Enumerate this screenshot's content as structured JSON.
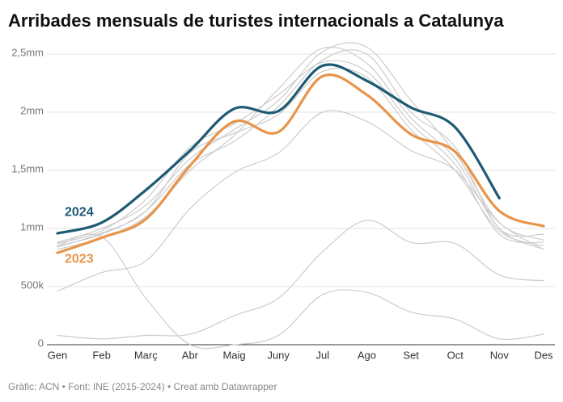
{
  "chart_data": {
    "type": "line",
    "title": "Arribades mensuals de turistes internacionals a Catalunya",
    "source": "Gràfic: ACN • Font: INE (2015-2024) • Creat amb Datawrapper",
    "categories": [
      "Gen",
      "Feb",
      "Març",
      "Abr",
      "Maig",
      "Juny",
      "Jul",
      "Ago",
      "Set",
      "Oct",
      "Nov",
      "Des"
    ],
    "ylim": [
      0,
      2550000
    ],
    "yticks": [
      0,
      {
        "value": 500000,
        "label": "500k"
      },
      {
        "value": 1000000,
        "label": "1mm"
      },
      {
        "value": 1500000,
        "label": "1,5mm"
      },
      {
        "value": 2000000,
        "label": "2mm"
      },
      {
        "value": 2500000,
        "label": "2,5mm"
      }
    ],
    "grid": true,
    "series": [
      {
        "color": "#cccccc",
        "values": [
          850000,
          950000,
          1150000,
          1550000,
          1750000,
          2050000,
          2450000,
          2500000,
          2000000,
          1700000,
          1000000,
          950000
        ]
      },
      {
        "color": "#cccccc",
        "values": [
          880000,
          1000000,
          1200000,
          1600000,
          1850000,
          2100000,
          2520000,
          2560000,
          2100000,
          1650000,
          1050000,
          900000
        ]
      },
      {
        "color": "#cccccc",
        "values": [
          820000,
          920000,
          1100000,
          1500000,
          1800000,
          2200000,
          2550000,
          2420000,
          1950000,
          1600000,
          1000000,
          820000
        ]
      },
      {
        "color": "#cccccc",
        "values": [
          870000,
          980000,
          1250000,
          1700000,
          1900000,
          2150000,
          2430000,
          2350000,
          1900000,
          1550000,
          950000,
          880000
        ]
      },
      {
        "color": "#cccccc",
        "values": [
          840000,
          960000,
          1150000,
          1650000,
          1820000,
          1980000,
          2350000,
          2300000,
          1850000,
          1500000,
          980000,
          850000
        ]
      },
      {
        "color": "#cccccc",
        "values": [
          850000,
          930000,
          400000,
          0,
          0,
          80000,
          430000,
          450000,
          280000,
          220000,
          50000,
          90000
        ]
      },
      {
        "color": "#cccccc",
        "values": [
          80000,
          50000,
          80000,
          90000,
          250000,
          400000,
          800000,
          1070000,
          880000,
          870000,
          600000,
          550000
        ]
      },
      {
        "color": "#cccccc",
        "values": [
          460000,
          620000,
          720000,
          1170000,
          1480000,
          1650000,
          2000000,
          1920000,
          1670000,
          1500000,
          1050000,
          820000
        ]
      },
      {
        "name": "2023",
        "color": "#e8954b",
        "values": [
          790000,
          920000,
          1080000,
          1540000,
          1920000,
          1830000,
          2310000,
          2150000,
          1810000,
          1660000,
          1150000,
          1020000
        ]
      },
      {
        "name": "2024",
        "color": "#1d5a74",
        "values": [
          958000,
          1050000,
          1330000,
          1670000,
          2030000,
          2010000,
          2400000,
          2270000,
          2040000,
          1870000,
          1260000,
          null
        ]
      }
    ]
  }
}
